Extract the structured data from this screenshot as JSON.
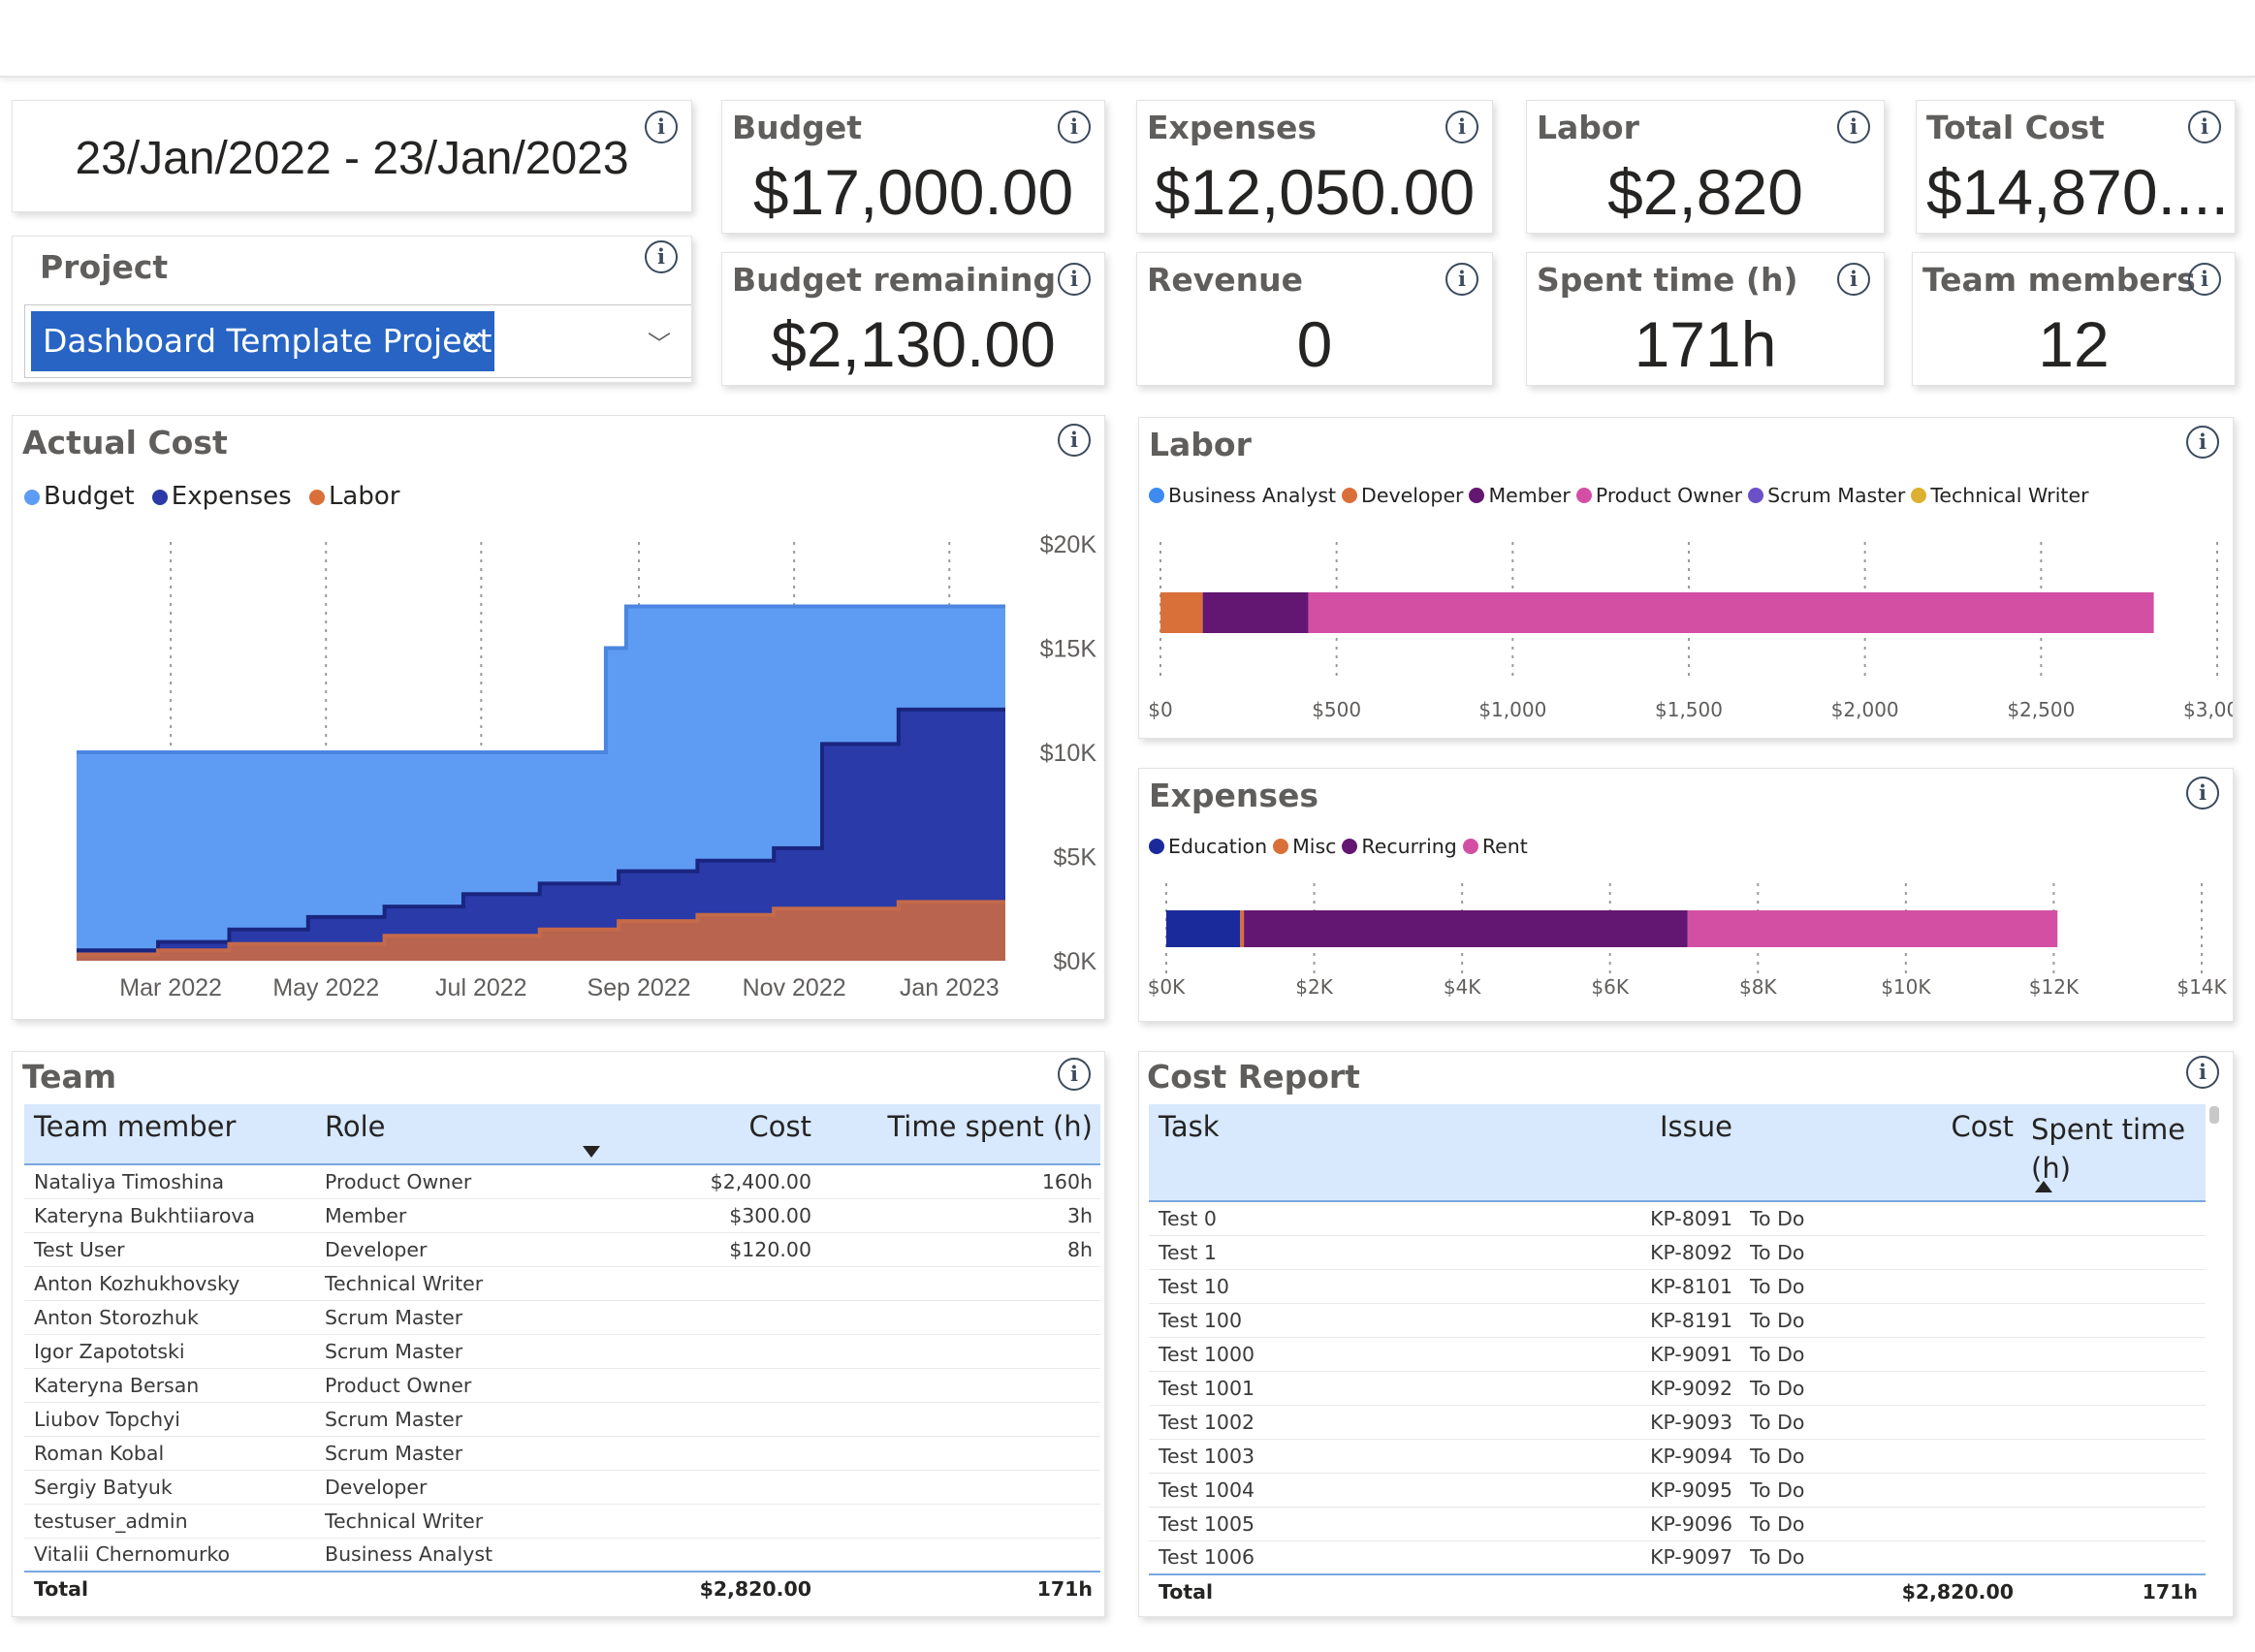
{
  "date_range": "23/Jan/2022 - 23/Jan/2023",
  "project_slicer": {
    "title": "Project",
    "selected": "Dashboard Template Project"
  },
  "kpis": {
    "budget": {
      "title": "Budget",
      "value": "$17,000.00"
    },
    "budget_remaining": {
      "title": "Budget remaining",
      "value": "$2,130.00"
    },
    "expenses": {
      "title": "Expenses",
      "value": "$12,050.00"
    },
    "revenue": {
      "title": "Revenue",
      "value": "0"
    },
    "labor": {
      "title": "Labor",
      "value": "$2,820"
    },
    "spent_time": {
      "title": "Spent time (h)",
      "value": "171h"
    },
    "total_cost": {
      "title": "Total Cost",
      "value": "$14,870...."
    },
    "team_members": {
      "title": "Team members",
      "value": "12"
    }
  },
  "colors": {
    "budget": "#5e9cf4",
    "expenses": "#2a3aa8",
    "labor": "#b8644e",
    "business_analyst": "#3d8af0",
    "developer": "#d9703a",
    "member": "#641772",
    "product_owner": "#d34fa3",
    "scrum_master": "#6b50c8",
    "technical_writer": "#dcb030",
    "education": "#1b2a9b",
    "misc": "#d9703a",
    "recurring": "#641772",
    "rent": "#d34fa3"
  },
  "chart_data": [
    {
      "type": "area",
      "title": "Actual Cost",
      "x_tick_labels": [
        "Mar 2022",
        "May 2022",
        "Jul 2022",
        "Sep 2022",
        "Nov 2022",
        "Jan 2023"
      ],
      "y_tick_labels": [
        "$20K",
        "$15K",
        "$10K",
        "$5K",
        "$0K"
      ],
      "ylim": [
        0,
        20000
      ],
      "x_range": [
        "2022-01-23",
        "2023-01-23"
      ],
      "legend_position": "top-left",
      "grid": "vertical dotted",
      "series": [
        {
          "name": "Budget",
          "points": [
            [
              "2022-01-23",
              10000
            ],
            [
              "2022-08-19",
              10000
            ],
            [
              "2022-08-19",
              15000
            ],
            [
              "2022-08-27",
              15000
            ],
            [
              "2022-08-27",
              17000
            ],
            [
              "2023-01-23",
              17000
            ]
          ]
        },
        {
          "name": "Expenses",
          "points": [
            [
              "2022-01-23",
              500
            ],
            [
              "2022-02-24",
              500
            ],
            [
              "2022-02-24",
              900
            ],
            [
              "2022-03-24",
              900
            ],
            [
              "2022-03-24",
              1500
            ],
            [
              "2022-04-24",
              1500
            ],
            [
              "2022-04-24",
              2100
            ],
            [
              "2022-05-24",
              2100
            ],
            [
              "2022-05-24",
              2600
            ],
            [
              "2022-06-24",
              2600
            ],
            [
              "2022-06-24",
              3200
            ],
            [
              "2022-07-24",
              3200
            ],
            [
              "2022-07-24",
              3700
            ],
            [
              "2022-08-24",
              3700
            ],
            [
              "2022-08-24",
              4300
            ],
            [
              "2022-09-24",
              4300
            ],
            [
              "2022-09-24",
              4800
            ],
            [
              "2022-10-24",
              4800
            ],
            [
              "2022-10-24",
              5400
            ],
            [
              "2022-11-12",
              5400
            ],
            [
              "2022-11-12",
              10400
            ],
            [
              "2022-12-12",
              10400
            ],
            [
              "2022-12-12",
              12050
            ],
            [
              "2023-01-23",
              12050
            ]
          ]
        },
        {
          "name": "Labor",
          "points": [
            [
              "2022-01-23",
              300
            ],
            [
              "2022-02-24",
              300
            ],
            [
              "2022-02-24",
              500
            ],
            [
              "2022-03-24",
              500
            ],
            [
              "2022-03-24",
              800
            ],
            [
              "2022-05-24",
              800
            ],
            [
              "2022-05-24",
              1200
            ],
            [
              "2022-07-24",
              1200
            ],
            [
              "2022-07-24",
              1500
            ],
            [
              "2022-08-24",
              1500
            ],
            [
              "2022-08-24",
              1900
            ],
            [
              "2022-09-24",
              1900
            ],
            [
              "2022-09-24",
              2200
            ],
            [
              "2022-10-24",
              2200
            ],
            [
              "2022-10-24",
              2500
            ],
            [
              "2022-12-12",
              2500
            ],
            [
              "2022-12-12",
              2820
            ],
            [
              "2023-01-23",
              2820
            ]
          ]
        }
      ]
    },
    {
      "type": "bar",
      "title": "Labor",
      "orientation": "horizontal-stacked",
      "legend_position": "top-left",
      "x_tick_labels": [
        "$0",
        "$500",
        "$1,000",
        "$1,500",
        "$2,000",
        "$2,500",
        "$3,000"
      ],
      "xlim": [
        0,
        3000
      ],
      "series": [
        {
          "name": "Business Analyst",
          "values": [
            0
          ]
        },
        {
          "name": "Developer",
          "values": [
            120
          ]
        },
        {
          "name": "Member",
          "values": [
            300
          ]
        },
        {
          "name": "Product Owner",
          "values": [
            2400
          ]
        },
        {
          "name": "Scrum Master",
          "values": [
            0
          ]
        },
        {
          "name": "Technical Writer",
          "values": [
            0
          ]
        }
      ]
    },
    {
      "type": "bar",
      "title": "Expenses",
      "orientation": "horizontal-stacked",
      "legend_position": "top-left",
      "x_tick_labels": [
        "$0K",
        "$2K",
        "$4K",
        "$6K",
        "$8K",
        "$10K",
        "$12K",
        "$14K"
      ],
      "xlim": [
        0,
        14000
      ],
      "series": [
        {
          "name": "Education",
          "values": [
            1000
          ]
        },
        {
          "name": "Misc",
          "values": [
            50
          ]
        },
        {
          "name": "Recurring",
          "values": [
            6000
          ]
        },
        {
          "name": "Rent",
          "values": [
            5000
          ]
        }
      ]
    }
  ],
  "team": {
    "title": "Team",
    "headers": {
      "member": "Team member",
      "role": "Role",
      "cost": "Cost",
      "time": "Time spent (h)"
    },
    "rows": [
      {
        "member": "Nataliya Timoshina",
        "role": "Product Owner",
        "cost": "$2,400.00",
        "time": "160h"
      },
      {
        "member": "Kateryna Bukhtiiarova",
        "role": "Member",
        "cost": "$300.00",
        "time": "3h"
      },
      {
        "member": "Test User",
        "role": "Developer",
        "cost": "$120.00",
        "time": "8h"
      },
      {
        "member": "Anton Kozhukhovsky",
        "role": "Technical Writer",
        "cost": "",
        "time": ""
      },
      {
        "member": "Anton Storozhuk",
        "role": "Scrum Master",
        "cost": "",
        "time": ""
      },
      {
        "member": "Igor Zapototski",
        "role": "Scrum Master",
        "cost": "",
        "time": ""
      },
      {
        "member": "Kateryna Bersan",
        "role": "Product Owner",
        "cost": "",
        "time": ""
      },
      {
        "member": "Liubov Topchyi",
        "role": "Scrum Master",
        "cost": "",
        "time": ""
      },
      {
        "member": "Roman Kobal",
        "role": "Scrum Master",
        "cost": "",
        "time": ""
      },
      {
        "member": "Sergiy Batyuk",
        "role": "Developer",
        "cost": "",
        "time": ""
      },
      {
        "member": "testuser_admin",
        "role": "Technical Writer",
        "cost": "",
        "time": ""
      },
      {
        "member": "Vitalii Chernomurko",
        "role": "Business Analyst",
        "cost": "",
        "time": ""
      }
    ],
    "total": {
      "label": "Total",
      "cost": "$2,820.00",
      "time": "171h"
    }
  },
  "cost_report": {
    "title": "Cost Report",
    "headers": {
      "task": "Task",
      "issue": "Issue",
      "cost": "Cost",
      "spent": "Spent time (h)"
    },
    "rows": [
      {
        "task": "Test 0",
        "issue": "KP-8091",
        "status": "To Do"
      },
      {
        "task": "Test 1",
        "issue": "KP-8092",
        "status": "To Do"
      },
      {
        "task": "Test 10",
        "issue": "KP-8101",
        "status": "To Do"
      },
      {
        "task": "Test 100",
        "issue": "KP-8191",
        "status": "To Do"
      },
      {
        "task": "Test 1000",
        "issue": "KP-9091",
        "status": "To Do"
      },
      {
        "task": "Test 1001",
        "issue": "KP-9092",
        "status": "To Do"
      },
      {
        "task": "Test 1002",
        "issue": "KP-9093",
        "status": "To Do"
      },
      {
        "task": "Test 1003",
        "issue": "KP-9094",
        "status": "To Do"
      },
      {
        "task": "Test 1004",
        "issue": "KP-9095",
        "status": "To Do"
      },
      {
        "task": "Test 1005",
        "issue": "KP-9096",
        "status": "To Do"
      },
      {
        "task": "Test 1006",
        "issue": "KP-9097",
        "status": "To Do"
      }
    ],
    "total": {
      "label": "Total",
      "cost": "$2,820.00",
      "spent": "171h"
    }
  }
}
